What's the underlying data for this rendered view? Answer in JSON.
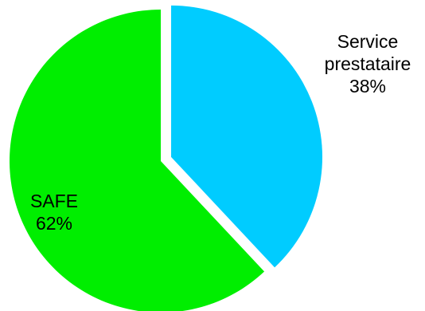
{
  "chart_data": {
    "type": "pie",
    "slices": [
      {
        "label_lines": [
          "Service",
          "prestataire"
        ],
        "percent_label": "38%",
        "value": 38,
        "color": "#00ccff"
      },
      {
        "label_lines": [
          "SAFE"
        ],
        "percent_label": "62%",
        "value": 62,
        "color": "#00ee00"
      }
    ]
  }
}
